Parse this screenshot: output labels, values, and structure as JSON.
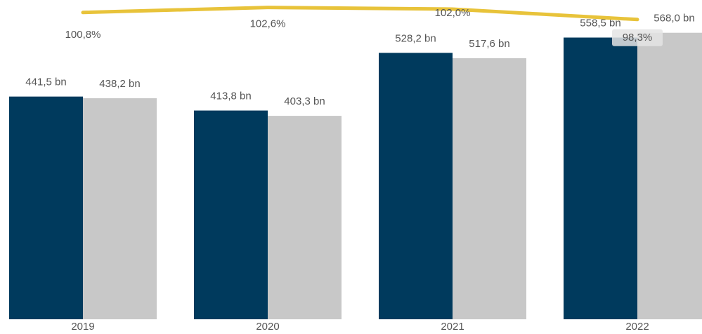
{
  "chart_data": {
    "type": "bar",
    "categories": [
      "2019",
      "2020",
      "2021",
      "2022"
    ],
    "series": [
      {
        "color": "#003a5d",
        "values": [
          441.5,
          413.8,
          528.2,
          558.5
        ],
        "value_labels": [
          "441,5 bn",
          "413,8 bn",
          "528,2 bn",
          "558,5 bn"
        ]
      },
      {
        "color": "#c8c8c8",
        "values": [
          438.2,
          403.3,
          517.6,
          568.0
        ],
        "value_labels": [
          "438,2 bn",
          "403,3 bn",
          "517,6 bn",
          "568,0 bn"
        ]
      },
      {
        "type": "line",
        "axis": "y2",
        "color": "#e8c33a",
        "values": [
          100.8,
          102.6,
          102.0,
          98.3
        ],
        "value_labels": [
          "100,8%",
          "102,6%",
          "102,0%",
          "98,3%"
        ]
      }
    ],
    "ylim": [
      0,
      626
    ],
    "y2lim": [
      -8.5,
      104
    ]
  }
}
